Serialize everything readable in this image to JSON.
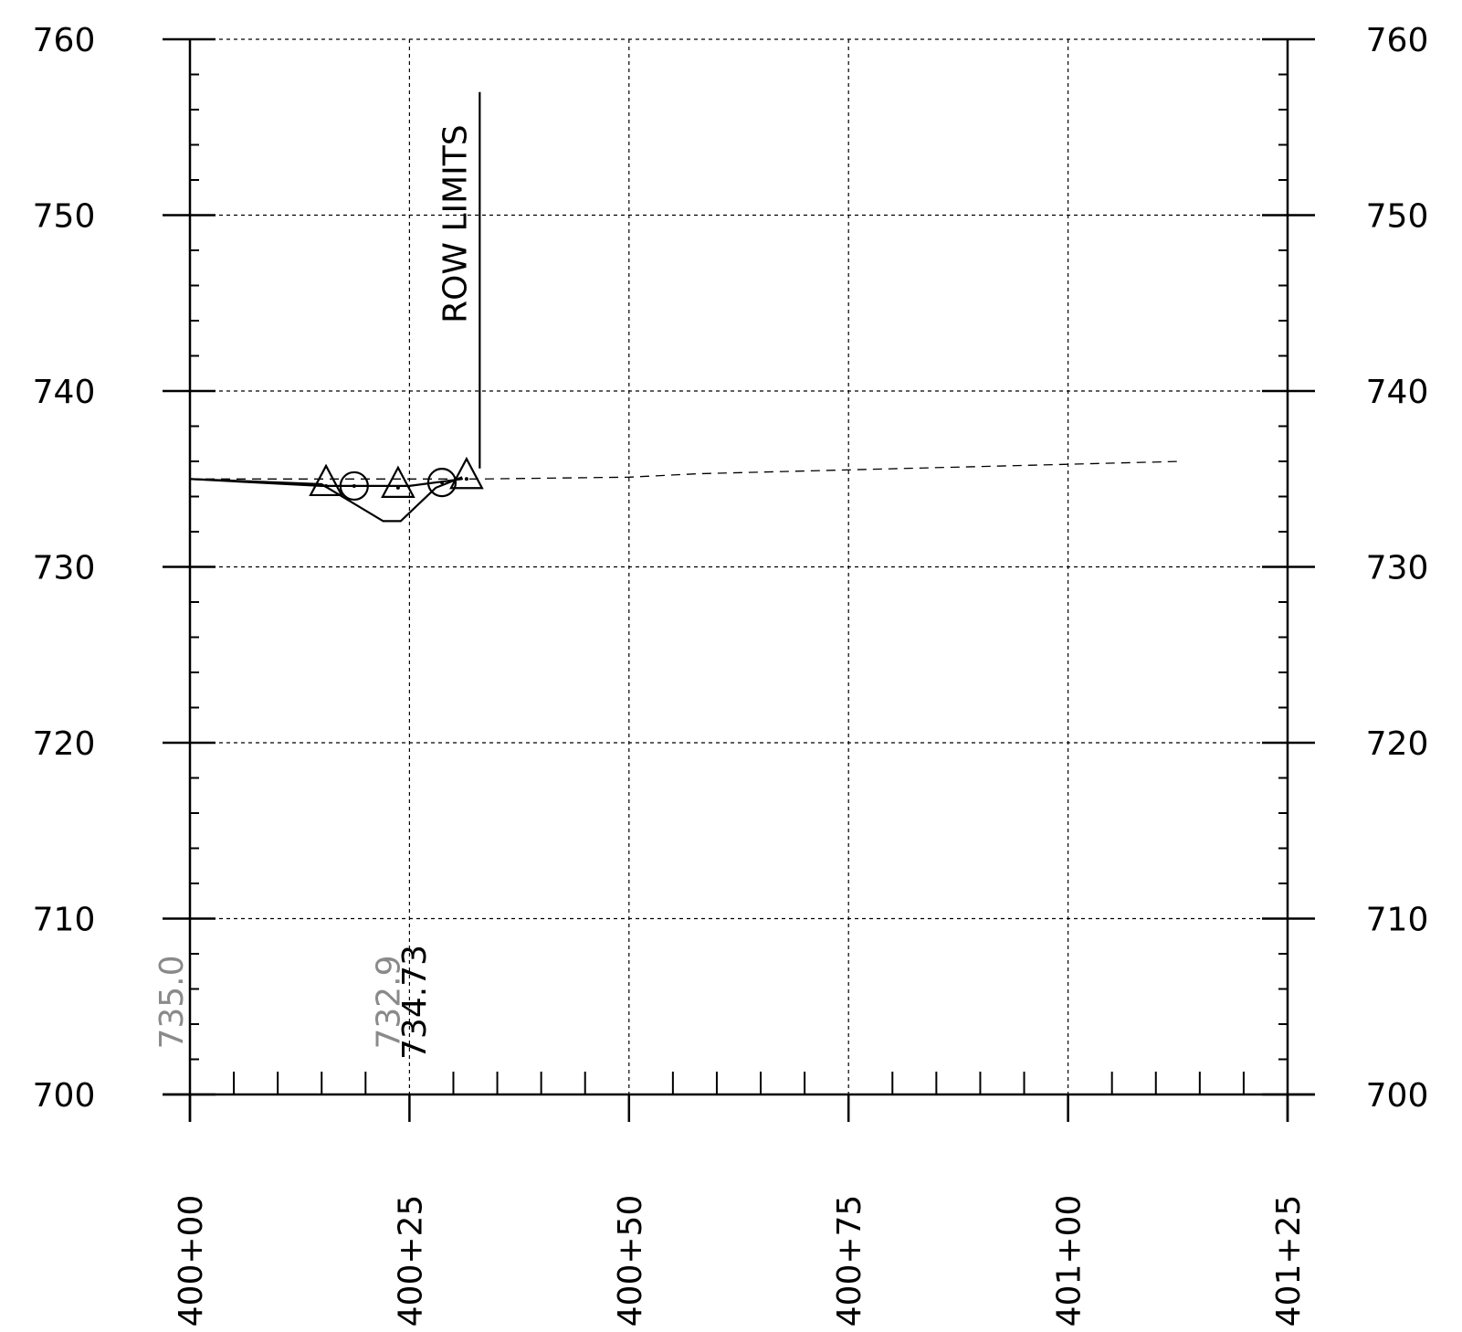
{
  "chart_data": {
    "type": "line",
    "xlim": [
      0,
      125
    ],
    "ylim": [
      700,
      760
    ],
    "grid": true,
    "y_ticks": [
      700,
      710,
      720,
      730,
      740,
      750,
      760
    ],
    "y_tick_labels": [
      "700",
      "710",
      "720",
      "730",
      "740",
      "750",
      "760"
    ],
    "x_ticks": [
      0,
      25,
      50,
      75,
      100,
      125
    ],
    "x_tick_labels": [
      "400+00",
      "400+25",
      "400+50",
      "400+75",
      "401+00",
      "401+25"
    ],
    "series": [
      {
        "style": "solid",
        "x": [
          0,
          15,
          22,
          24,
          28,
          31
        ],
        "y": [
          735.0,
          734.7,
          732.6,
          732.6,
          734.5,
          735.1
        ]
      },
      {
        "style": "solid",
        "x": [
          0,
          15,
          19,
          25,
          31
        ],
        "y": [
          735.0,
          734.6,
          734.6,
          734.6,
          735.0
        ]
      },
      {
        "style": "dashed",
        "x": [
          0,
          33,
          50,
          58,
          113
        ],
        "y": [
          735.0,
          735.0,
          735.1,
          735.3,
          736.0
        ]
      }
    ],
    "markers": [
      {
        "shape": "triangle",
        "x": 15.5,
        "y": 734.6
      },
      {
        "shape": "circle",
        "x": 18.7,
        "y": 734.6
      },
      {
        "shape": "triangle",
        "x": 23.7,
        "y": 734.5
      },
      {
        "shape": "circle",
        "x": 28.7,
        "y": 734.8
      },
      {
        "shape": "triangle",
        "x": 31.5,
        "y": 735.0
      }
    ],
    "row_limit": {
      "x": 33,
      "y_from": 735.6,
      "y_to": 757,
      "label": "ROW LIMITS"
    },
    "annotations": [
      {
        "text": "735.0",
        "x": -2.2,
        "color": "gray"
      },
      {
        "text": "732.9",
        "x": 22.5,
        "color": "gray"
      },
      {
        "text": "734.73",
        "x": 25.5,
        "color": "black"
      }
    ]
  }
}
